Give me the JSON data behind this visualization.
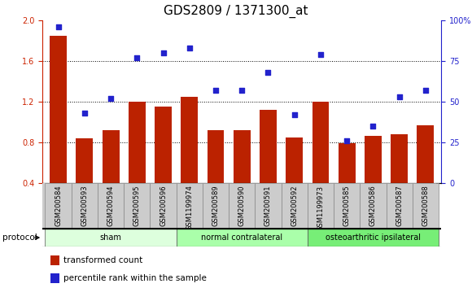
{
  "title": "GDS2809 / 1371300_at",
  "samples": [
    "GSM200584",
    "GSM200593",
    "GSM200594",
    "GSM200595",
    "GSM200596",
    "GSM1199974",
    "GSM200589",
    "GSM200590",
    "GSM200591",
    "GSM200592",
    "GSM1199973",
    "GSM200585",
    "GSM200586",
    "GSM200587",
    "GSM200588"
  ],
  "bar_values": [
    1.85,
    0.84,
    0.92,
    1.2,
    1.15,
    1.25,
    0.92,
    0.92,
    1.12,
    0.85,
    1.2,
    0.79,
    0.86,
    0.88,
    0.97
  ],
  "dot_values": [
    96,
    43,
    52,
    77,
    80,
    83,
    57,
    57,
    68,
    42,
    79,
    26,
    35,
    53,
    57
  ],
  "bar_color": "#BB2200",
  "dot_color": "#2222CC",
  "ylim_left": [
    0.4,
    2.0
  ],
  "ylim_right": [
    0,
    100
  ],
  "yticks_left": [
    0.4,
    0.8,
    1.2,
    1.6,
    2.0
  ],
  "yticks_right": [
    0,
    25,
    50,
    75,
    100
  ],
  "groups": [
    {
      "label": "sham",
      "start": 0,
      "end": 4,
      "color": "#DDFFDD"
    },
    {
      "label": "normal contralateral",
      "start": 5,
      "end": 9,
      "color": "#AAFFAA"
    },
    {
      "label": "osteoarthritic ipsilateral",
      "start": 10,
      "end": 14,
      "color": "#77EE77"
    }
  ],
  "protocol_label": "protocol",
  "legend_bar": "transformed count",
  "legend_dot": "percentile rank within the sample",
  "plot_bg": "#FFFFFF",
  "title_fontsize": 11,
  "tick_fontsize": 7,
  "axis_color_left": "#CC2200",
  "axis_color_right": "#2222CC",
  "label_bg": "#CCCCCC",
  "label_border": "#888888"
}
